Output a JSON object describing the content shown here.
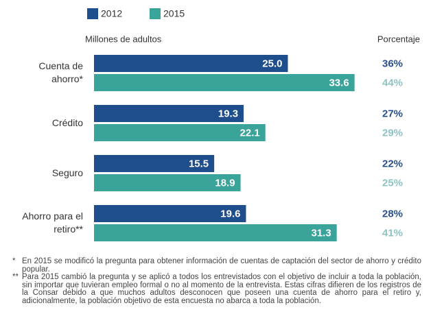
{
  "chart_data": {
    "type": "bar",
    "orientation": "horizontal",
    "y_axis_label": "Millones de adultos",
    "right_axis_label": "Porcentaje",
    "categories": [
      "Cuenta de ahorro*",
      "Crédito",
      "Seguro",
      "Ahorro para el retiro**"
    ],
    "series": [
      {
        "name": "2012",
        "color": "#1f4e8c",
        "label_color": "#2a4f8a",
        "values": [
          25.0,
          19.3,
          15.5,
          19.6
        ],
        "value_labels": [
          "25.0",
          "19.3",
          "15.5",
          "19.6"
        ],
        "percentage_labels": [
          "36%",
          "27%",
          "22%",
          "28%"
        ]
      },
      {
        "name": "2015",
        "color": "#3aa39a",
        "label_color": "#8fc3c3",
        "values": [
          33.6,
          22.1,
          18.9,
          31.3
        ],
        "value_labels": [
          "33.6",
          "22.1",
          "18.9",
          "31.3"
        ],
        "percentage_labels": [
          "44%",
          "29%",
          "25%",
          "41%"
        ]
      }
    ],
    "footnotes": [
      {
        "marker": "*",
        "text": "En 2015 se modificó la pregunta para obtener información de cuentas de captación del sector de ahorro y crédito popular."
      },
      {
        "marker": "**",
        "text": "Para 2015 cambió la pregunta y se aplicó a todos los entrevistados con el objetivo de incluir a toda la población, sin importar que tuvieran empleo formal o no al momento de la entrevista. Estas cifras difieren de los registros de la Consar debido a que muchos adultos desconocen que poseen una cuenta de ahorro para el retiro y, adicionalmente, la población objetivo de esta encuesta no abarca a toda la población."
      }
    ]
  }
}
